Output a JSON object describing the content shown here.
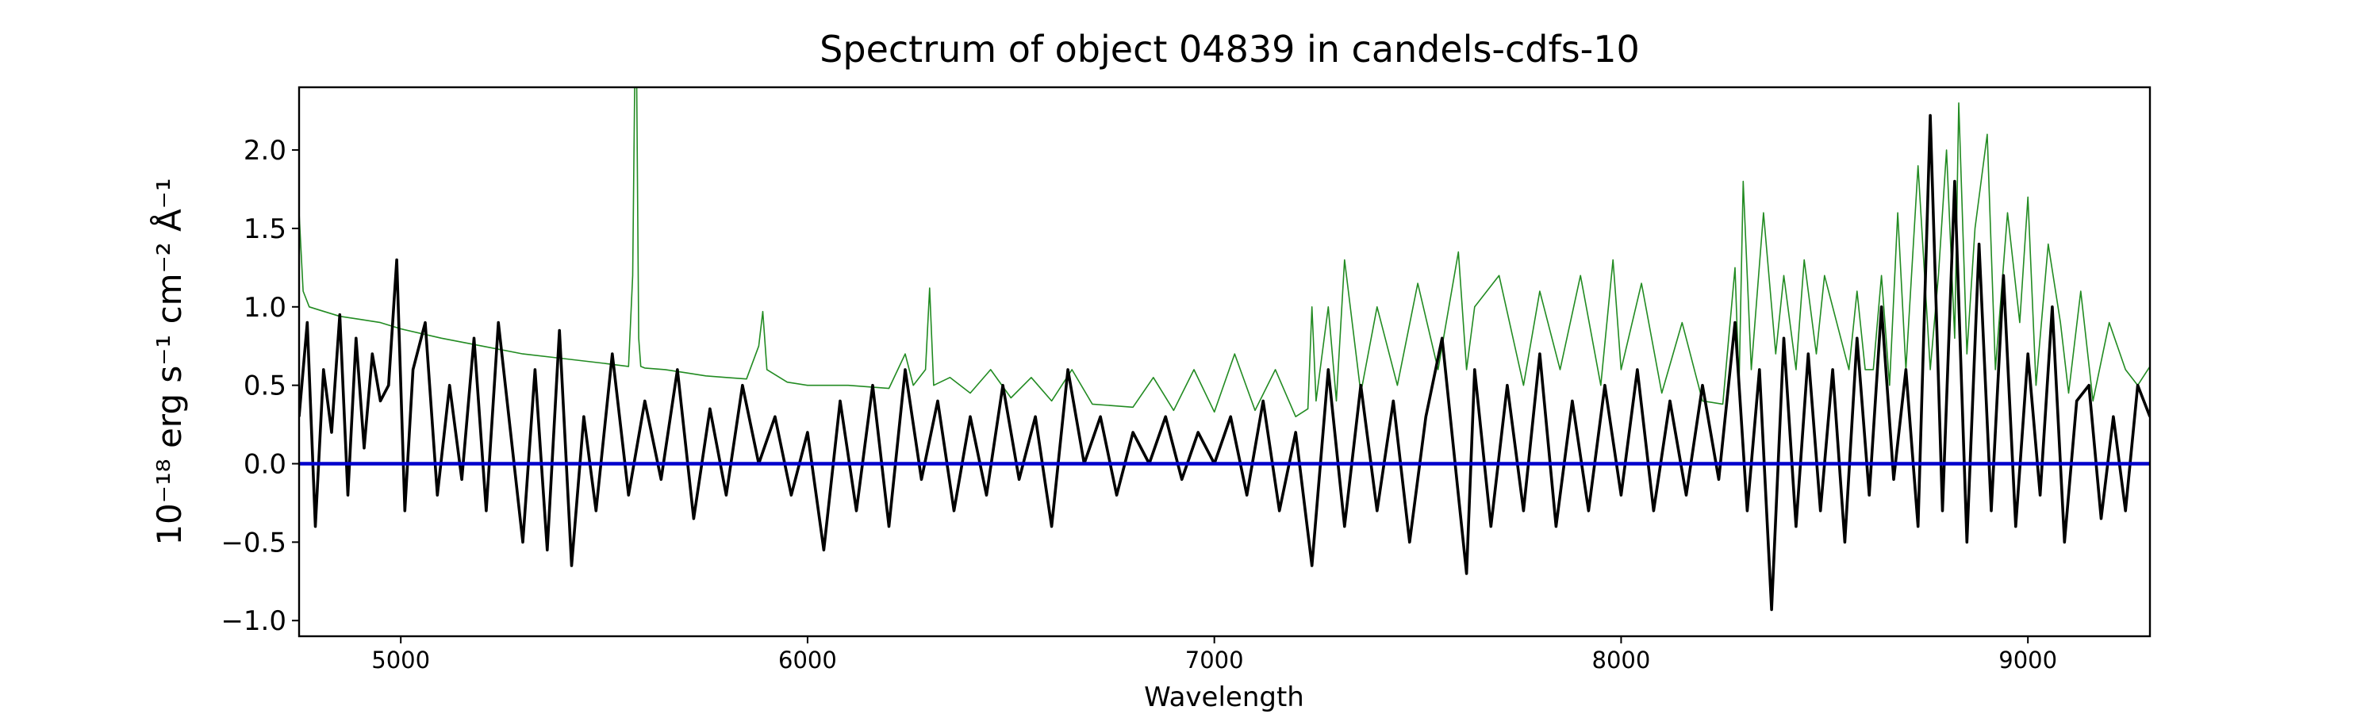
{
  "chart_data": {
    "type": "line",
    "title": "Spectrum of object 04839 in candels-cdfs-10",
    "xlabel": "Wavelength",
    "ylabel": "10⁻¹⁸ erg s⁻¹ cm⁻² Å⁻¹",
    "xlim": [
      4750,
      9300
    ],
    "ylim": [
      -1.1,
      2.4
    ],
    "x_ticks": [
      5000,
      6000,
      7000,
      8000,
      9000
    ],
    "y_ticks": [
      -1.0,
      -0.5,
      0.0,
      0.5,
      1.0,
      1.5,
      2.0
    ],
    "grid": false,
    "colors": {
      "flux": "#000000",
      "error": "#228b22",
      "zero": "#0000cc"
    },
    "series": [
      {
        "role": "flux",
        "x": [
          4750,
          4770,
          4790,
          4810,
          4830,
          4850,
          4870,
          4890,
          4910,
          4930,
          4950,
          4970,
          4990,
          5010,
          5030,
          5060,
          5090,
          5120,
          5150,
          5180,
          5210,
          5240,
          5270,
          5300,
          5330,
          5360,
          5390,
          5420,
          5450,
          5480,
          5520,
          5560,
          5600,
          5640,
          5680,
          5720,
          5760,
          5800,
          5840,
          5880,
          5920,
          5960,
          6000,
          6040,
          6080,
          6120,
          6160,
          6200,
          6240,
          6280,
          6320,
          6360,
          6400,
          6440,
          6480,
          6520,
          6560,
          6600,
          6640,
          6680,
          6720,
          6760,
          6800,
          6840,
          6880,
          6920,
          6960,
          7000,
          7040,
          7080,
          7120,
          7160,
          7200,
          7240,
          7280,
          7320,
          7360,
          7400,
          7440,
          7480,
          7520,
          7560,
          7600,
          7620,
          7640,
          7680,
          7720,
          7760,
          7800,
          7840,
          7880,
          7920,
          7960,
          8000,
          8040,
          8080,
          8120,
          8160,
          8200,
          8240,
          8280,
          8310,
          8340,
          8370,
          8400,
          8430,
          8460,
          8490,
          8520,
          8550,
          8580,
          8610,
          8640,
          8670,
          8700,
          8730,
          8760,
          8790,
          8820,
          8850,
          8880,
          8910,
          8940,
          8970,
          9000,
          9030,
          9060,
          9090,
          9120,
          9150,
          9180,
          9210,
          9240,
          9270,
          9300
        ],
        "y": [
          0.3,
          0.9,
          -0.4,
          0.6,
          0.2,
          0.95,
          -0.2,
          0.8,
          0.1,
          0.7,
          0.4,
          0.5,
          1.3,
          -0.3,
          0.6,
          0.9,
          -0.2,
          0.5,
          -0.1,
          0.8,
          -0.3,
          0.9,
          0.2,
          -0.5,
          0.6,
          -0.55,
          0.85,
          -0.65,
          0.3,
          -0.3,
          0.7,
          -0.2,
          0.4,
          -0.1,
          0.6,
          -0.35,
          0.35,
          -0.2,
          0.5,
          0.0,
          0.3,
          -0.2,
          0.2,
          -0.55,
          0.4,
          -0.3,
          0.5,
          -0.4,
          0.6,
          -0.1,
          0.4,
          -0.3,
          0.3,
          -0.2,
          0.5,
          -0.1,
          0.3,
          -0.4,
          0.6,
          0.0,
          0.3,
          -0.2,
          0.2,
          0.0,
          0.3,
          -0.1,
          0.2,
          0.0,
          0.3,
          -0.2,
          0.4,
          -0.3,
          0.2,
          -0.65,
          0.6,
          -0.4,
          0.5,
          -0.3,
          0.4,
          -0.5,
          0.3,
          0.8,
          -0.2,
          -0.7,
          0.6,
          -0.4,
          0.5,
          -0.3,
          0.7,
          -0.4,
          0.4,
          -0.3,
          0.5,
          -0.2,
          0.6,
          -0.3,
          0.4,
          -0.2,
          0.5,
          -0.1,
          0.9,
          -0.3,
          0.6,
          -0.93,
          0.8,
          -0.4,
          0.7,
          -0.3,
          0.6,
          -0.5,
          0.8,
          -0.2,
          1.0,
          -0.1,
          0.6,
          -0.4,
          2.22,
          -0.3,
          1.8,
          -0.5,
          1.4,
          -0.3,
          1.2,
          -0.4,
          0.7,
          -0.2,
          1.0,
          -0.5,
          0.4,
          0.5,
          -0.35,
          0.3,
          -0.3,
          0.5,
          0.3
        ]
      },
      {
        "role": "error",
        "x": [
          4750,
          4760,
          4775,
          4800,
          4850,
          4900,
          4950,
          5000,
          5100,
          5200,
          5300,
          5400,
          5500,
          5560,
          5570,
          5575,
          5580,
          5585,
          5590,
          5600,
          5650,
          5700,
          5750,
          5800,
          5850,
          5880,
          5890,
          5900,
          5950,
          6000,
          6100,
          6200,
          6240,
          6260,
          6290,
          6300,
          6310,
          6350,
          6400,
          6450,
          6500,
          6550,
          6600,
          6650,
          6700,
          6800,
          6850,
          6900,
          6950,
          7000,
          7050,
          7100,
          7150,
          7200,
          7230,
          7240,
          7250,
          7280,
          7300,
          7320,
          7360,
          7400,
          7450,
          7500,
          7550,
          7600,
          7620,
          7640,
          7700,
          7760,
          7800,
          7850,
          7900,
          7950,
          7980,
          8000,
          8050,
          8100,
          8150,
          8200,
          8250,
          8280,
          8290,
          8300,
          8320,
          8350,
          8380,
          8400,
          8430,
          8450,
          8480,
          8500,
          8530,
          8560,
          8580,
          8600,
          8620,
          8640,
          8660,
          8680,
          8700,
          8730,
          8760,
          8780,
          8800,
          8820,
          8830,
          8850,
          8870,
          8900,
          8920,
          8950,
          8980,
          9000,
          9020,
          9050,
          9080,
          9100,
          9130,
          9160,
          9200,
          9240,
          9270,
          9300
        ],
        "y": [
          1.6,
          1.1,
          1.0,
          0.98,
          0.94,
          0.92,
          0.9,
          0.86,
          0.8,
          0.75,
          0.7,
          0.67,
          0.64,
          0.62,
          1.2,
          2.4,
          2.4,
          0.8,
          0.62,
          0.61,
          0.6,
          0.58,
          0.56,
          0.55,
          0.54,
          0.75,
          0.97,
          0.6,
          0.52,
          0.5,
          0.5,
          0.48,
          0.7,
          0.5,
          0.6,
          1.12,
          0.5,
          0.55,
          0.45,
          0.6,
          0.42,
          0.55,
          0.4,
          0.6,
          0.38,
          0.36,
          0.55,
          0.34,
          0.6,
          0.33,
          0.7,
          0.34,
          0.6,
          0.3,
          0.35,
          1.0,
          0.4,
          1.0,
          0.4,
          1.3,
          0.45,
          1.0,
          0.5,
          1.15,
          0.6,
          1.35,
          0.6,
          1.0,
          1.2,
          0.5,
          1.1,
          0.6,
          1.2,
          0.5,
          1.3,
          0.6,
          1.15,
          0.45,
          0.9,
          0.4,
          0.38,
          1.25,
          0.5,
          1.8,
          0.6,
          1.6,
          0.7,
          1.2,
          0.6,
          1.3,
          0.7,
          1.2,
          0.9,
          0.6,
          1.1,
          0.6,
          0.6,
          1.2,
          0.5,
          1.6,
          0.6,
          1.9,
          0.6,
          1.2,
          2.0,
          0.8,
          2.3,
          0.7,
          1.5,
          2.1,
          0.6,
          1.6,
          0.9,
          1.7,
          0.5,
          1.4,
          0.9,
          0.45,
          1.1,
          0.4,
          0.9,
          0.6,
          0.5,
          0.62
        ]
      },
      {
        "role": "zero",
        "x": [
          4750,
          9300
        ],
        "y": [
          0.0,
          0.0
        ]
      }
    ]
  }
}
